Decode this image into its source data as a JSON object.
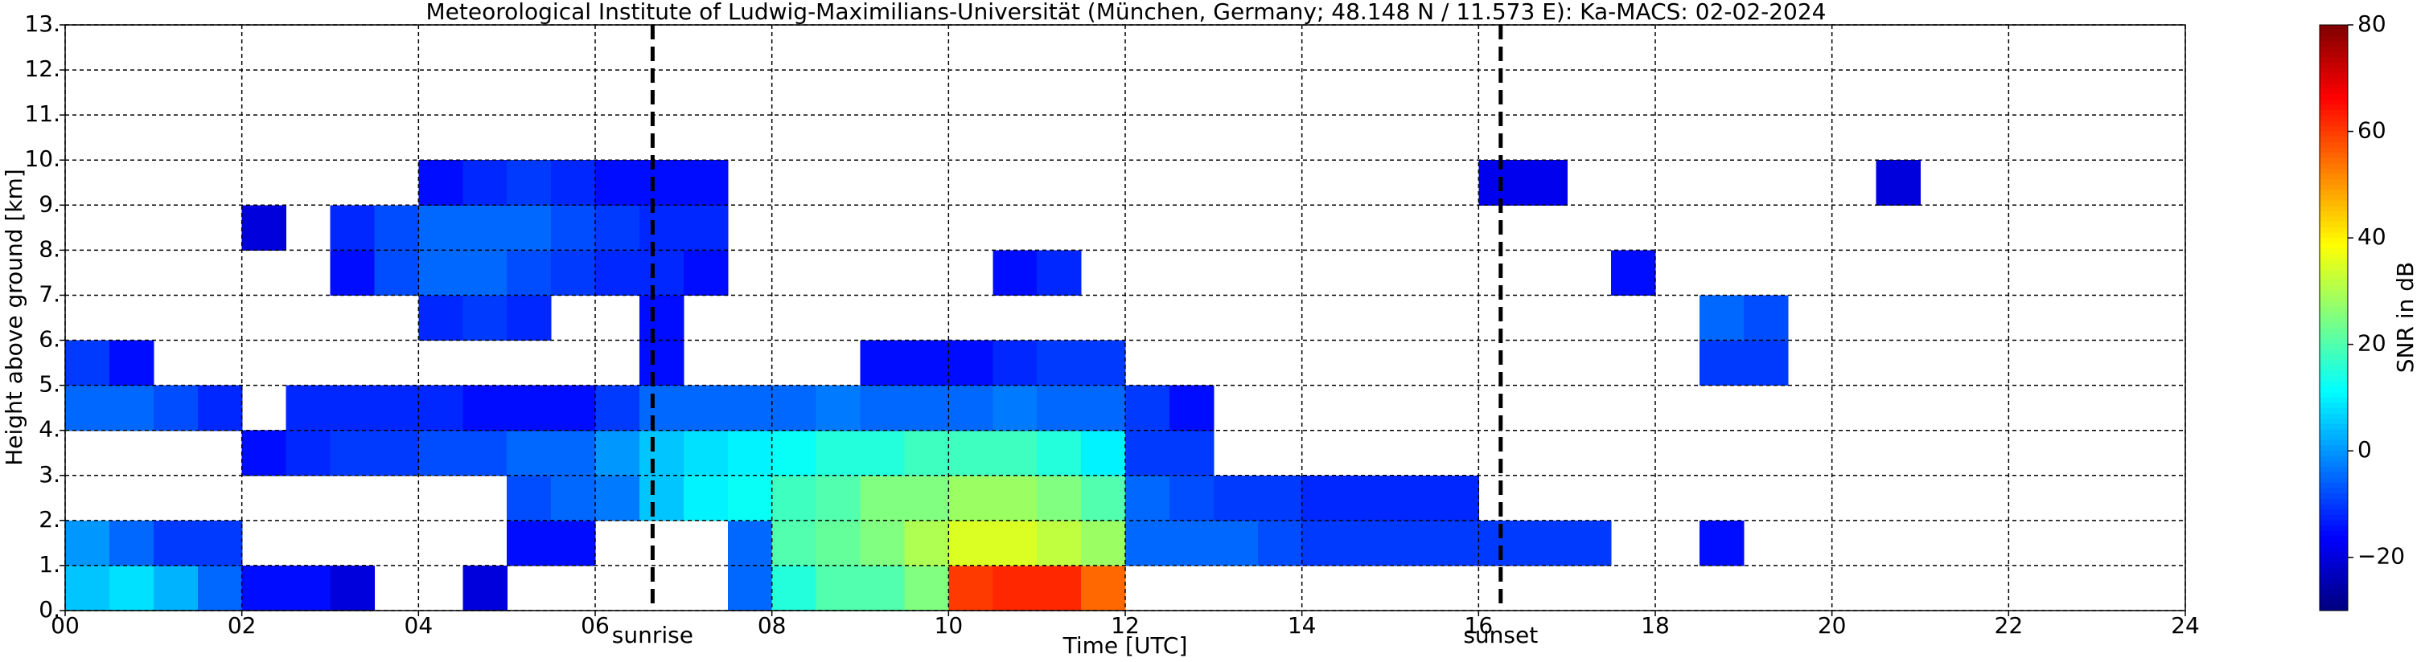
{
  "chart_data": {
    "type": "heatmap",
    "title": "Meteorological Institute of Ludwig-Maximilians-Universität (München, Germany; 48.148 N / 11.573 E):    Ka-MACS: 02-02-2024",
    "xlabel": "Time [UTC]",
    "ylabel": "Height above ground [km]",
    "colorbar_label": "SNR in dB",
    "colormap": "jet",
    "grid": true,
    "xlim": [
      0,
      24
    ],
    "ylim": [
      0,
      13
    ],
    "clim": [
      -30,
      80
    ],
    "xticks": [
      {
        "value": 0,
        "label": "00"
      },
      {
        "value": 2,
        "label": "02"
      },
      {
        "value": 4,
        "label": "04"
      },
      {
        "value": 6,
        "label": "06"
      },
      {
        "value": 8,
        "label": "08"
      },
      10,
      12,
      14,
      16,
      18,
      20,
      22,
      24
    ],
    "yticks": [
      {
        "value": 0,
        "label": "0."
      },
      {
        "value": 1,
        "label": "1."
      },
      {
        "value": 2,
        "label": "2."
      },
      {
        "value": 3,
        "label": "3."
      },
      {
        "value": 4,
        "label": "4."
      },
      {
        "value": 5,
        "label": "5."
      },
      {
        "value": 6,
        "label": "6."
      },
      {
        "value": 7,
        "label": "7."
      },
      {
        "value": 8,
        "label": "8."
      },
      {
        "value": 9,
        "label": "9."
      },
      {
        "value": 10,
        "label": "10."
      },
      {
        "value": 11,
        "label": "11."
      },
      {
        "value": 12,
        "label": "12."
      },
      {
        "value": 13,
        "label": "13."
      }
    ],
    "cticks": [
      {
        "value": -20,
        "label": "−20"
      },
      0,
      20,
      40,
      60,
      80
    ],
    "annotations": [
      {
        "text": "sunrise",
        "x": 6.65
      },
      {
        "text": "sunset",
        "x": 16.25
      }
    ],
    "x": [
      0.25,
      0.75,
      1.25,
      1.75,
      2.25,
      2.75,
      3.25,
      3.75,
      4.25,
      4.75,
      5.25,
      5.75,
      6.25,
      6.75,
      7.25,
      7.75,
      8.25,
      8.75,
      9.25,
      9.75,
      10.25,
      10.75,
      11.25,
      11.75,
      12.25,
      12.75,
      13.25,
      13.75,
      14.25,
      14.75,
      15.25,
      15.75,
      16.25,
      16.75,
      17.25,
      17.75,
      18.25,
      18.75,
      19.25,
      19.75,
      20.25,
      20.75,
      21.25,
      21.75,
      22.25,
      22.75,
      23.25,
      23.75
    ],
    "y": [
      0.5,
      1.5,
      2.5,
      3.5,
      4.5,
      5.5,
      6.5,
      7.5,
      8.5,
      9.5,
      10.5,
      11.5,
      12.5
    ],
    "z": [
      [
        5,
        8,
        3,
        -5,
        -15,
        -15,
        -20,
        null,
        null,
        -20,
        null,
        null,
        null,
        null,
        null,
        -5,
        15,
        20,
        20,
        25,
        60,
        62,
        62,
        55,
        null,
        null,
        null,
        null,
        null,
        null,
        null,
        null,
        null,
        null,
        null,
        null,
        null,
        null,
        null,
        null,
        null,
        null,
        null,
        null,
        null,
        null,
        null,
        null
      ],
      [
        0,
        -5,
        -10,
        -10,
        null,
        null,
        null,
        null,
        null,
        null,
        -15,
        -15,
        null,
        null,
        null,
        -5,
        20,
        22,
        25,
        30,
        35,
        35,
        32,
        28,
        -5,
        -5,
        -5,
        -8,
        -10,
        -10,
        -10,
        -10,
        -10,
        -10,
        -10,
        null,
        null,
        -15,
        null,
        null,
        null,
        null,
        null,
        null,
        null,
        null,
        null,
        null
      ],
      [
        null,
        null,
        null,
        null,
        null,
        null,
        null,
        null,
        null,
        null,
        -8,
        -5,
        -3,
        5,
        10,
        12,
        18,
        20,
        25,
        25,
        28,
        28,
        25,
        20,
        -5,
        -8,
        -10,
        -10,
        -12,
        -12,
        -12,
        -12,
        null,
        null,
        null,
        null,
        null,
        null,
        null,
        null,
        null,
        null,
        null,
        null,
        null,
        null,
        null,
        null
      ],
      [
        null,
        null,
        null,
        null,
        -15,
        -12,
        -10,
        -10,
        -8,
        -8,
        -5,
        -5,
        0,
        5,
        8,
        10,
        12,
        15,
        15,
        18,
        18,
        18,
        15,
        10,
        -10,
        -10,
        null,
        null,
        null,
        null,
        null,
        null,
        null,
        null,
        null,
        null,
        null,
        null,
        null,
        null,
        null,
        null,
        null,
        null,
        null,
        null,
        null,
        null
      ],
      [
        -5,
        -5,
        -8,
        -12,
        null,
        -12,
        -12,
        -12,
        -12,
        -15,
        -15,
        -15,
        -10,
        -5,
        -5,
        -5,
        -5,
        -3,
        -5,
        -5,
        -5,
        -3,
        -5,
        -5,
        -10,
        -15,
        null,
        null,
        null,
        null,
        null,
        null,
        null,
        null,
        null,
        null,
        null,
        null,
        null,
        null,
        null,
        null,
        null,
        null,
        null,
        null,
        null,
        null
      ],
      [
        -10,
        -15,
        null,
        null,
        null,
        null,
        null,
        null,
        null,
        null,
        null,
        null,
        null,
        -15,
        null,
        null,
        null,
        null,
        -15,
        -15,
        -15,
        -12,
        -10,
        -10,
        null,
        null,
        null,
        null,
        null,
        null,
        null,
        null,
        null,
        null,
        null,
        null,
        null,
        -10,
        -10,
        null,
        null,
        null,
        null,
        null,
        null,
        null,
        null,
        null
      ],
      [
        null,
        null,
        null,
        null,
        null,
        null,
        null,
        null,
        -12,
        -10,
        -12,
        null,
        null,
        -15,
        null,
        null,
        null,
        null,
        null,
        null,
        null,
        null,
        null,
        null,
        null,
        null,
        null,
        null,
        null,
        null,
        null,
        null,
        null,
        null,
        null,
        null,
        null,
        -5,
        -8,
        null,
        null,
        null,
        null,
        null,
        null,
        null,
        null,
        null
      ],
      [
        null,
        null,
        null,
        null,
        null,
        null,
        -15,
        -8,
        -5,
        -5,
        -8,
        -10,
        -12,
        -12,
        -15,
        null,
        null,
        null,
        null,
        null,
        null,
        -15,
        -12,
        null,
        null,
        null,
        null,
        null,
        null,
        null,
        null,
        null,
        null,
        null,
        null,
        -15,
        null,
        null,
        null,
        null,
        null,
        null,
        null,
        null,
        null,
        null,
        null,
        null
      ],
      [
        null,
        null,
        null,
        null,
        -20,
        null,
        -12,
        -8,
        -5,
        -5,
        -5,
        -8,
        -10,
        -12,
        -12,
        null,
        null,
        null,
        null,
        null,
        null,
        null,
        null,
        null,
        null,
        null,
        null,
        null,
        null,
        null,
        null,
        null,
        null,
        null,
        null,
        null,
        null,
        null,
        null,
        null,
        null,
        null,
        null,
        null,
        null,
        null,
        null,
        null
      ],
      [
        null,
        null,
        null,
        null,
        null,
        null,
        null,
        null,
        -15,
        -12,
        -10,
        -12,
        -15,
        -15,
        -15,
        null,
        null,
        null,
        null,
        null,
        null,
        null,
        null,
        null,
        null,
        null,
        null,
        null,
        null,
        null,
        null,
        null,
        -18,
        -18,
        null,
        null,
        null,
        null,
        null,
        null,
        null,
        -20,
        null,
        null,
        null,
        null,
        null,
        null
      ],
      [
        null,
        null,
        null,
        null,
        null,
        null,
        null,
        null,
        null,
        null,
        null,
        null,
        null,
        null,
        null,
        null,
        null,
        null,
        null,
        null,
        null,
        null,
        null,
        null,
        null,
        null,
        null,
        null,
        null,
        null,
        null,
        null,
        null,
        null,
        null,
        null,
        null,
        null,
        null,
        null,
        null,
        null,
        null,
        null,
        null,
        null,
        null,
        null
      ],
      [
        null,
        null,
        null,
        null,
        null,
        null,
        null,
        null,
        null,
        null,
        null,
        null,
        null,
        null,
        null,
        null,
        null,
        null,
        null,
        null,
        null,
        null,
        null,
        null,
        null,
        null,
        null,
        null,
        null,
        null,
        null,
        null,
        null,
        null,
        null,
        null,
        null,
        null,
        null,
        null,
        null,
        null,
        null,
        null,
        null,
        null,
        null,
        null
      ],
      [
        null,
        null,
        null,
        null,
        null,
        null,
        null,
        null,
        null,
        null,
        null,
        null,
        null,
        null,
        null,
        null,
        null,
        null,
        null,
        null,
        null,
        null,
        null,
        null,
        null,
        null,
        null,
        null,
        null,
        null,
        null,
        null,
        null,
        null,
        null,
        null,
        null,
        null,
        null,
        null,
        null,
        null,
        null,
        null,
        null,
        null,
        null,
        null
      ]
    ]
  }
}
